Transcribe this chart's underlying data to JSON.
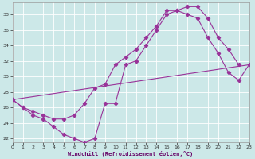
{
  "bg_color": "#cce8e8",
  "line_color": "#993399",
  "xlabel": "Windchill (Refroidissement éolien,°C)",
  "xlim": [
    0,
    23
  ],
  "ylim": [
    21.5,
    39.5
  ],
  "yticks": [
    22,
    24,
    26,
    28,
    30,
    32,
    34,
    36,
    38
  ],
  "xticks": [
    0,
    1,
    2,
    3,
    4,
    5,
    6,
    7,
    8,
    9,
    10,
    11,
    12,
    13,
    14,
    15,
    16,
    17,
    18,
    19,
    20,
    21,
    22,
    23
  ],
  "curve1_x": [
    0,
    1,
    2,
    3,
    4,
    5,
    6,
    7,
    8,
    9,
    10,
    11,
    12,
    13,
    14,
    15,
    16,
    17,
    18,
    19,
    20,
    21,
    22
  ],
  "curve1_y": [
    27.0,
    26.0,
    25.0,
    24.5,
    23.5,
    22.5,
    22.0,
    21.5,
    22.0,
    26.5,
    26.5,
    31.5,
    32.0,
    34.0,
    36.0,
    38.0,
    38.5,
    39.0,
    39.0,
    37.5,
    35.0,
    33.5,
    31.5
  ],
  "curve2_x": [
    0,
    1,
    2,
    3,
    4,
    5,
    6,
    7,
    8,
    9,
    10,
    11,
    12,
    13,
    14,
    15,
    16,
    17,
    18,
    19,
    20,
    21,
    22,
    23
  ],
  "curve2_y": [
    27.0,
    26.0,
    25.5,
    25.0,
    24.5,
    24.5,
    25.0,
    26.5,
    28.5,
    29.0,
    31.5,
    32.5,
    33.5,
    35.0,
    36.5,
    38.5,
    38.5,
    38.0,
    37.5,
    35.0,
    33.0,
    30.5,
    29.5,
    31.5
  ],
  "curve3_x": [
    0,
    23
  ],
  "curve3_y": [
    27.0,
    31.5
  ]
}
